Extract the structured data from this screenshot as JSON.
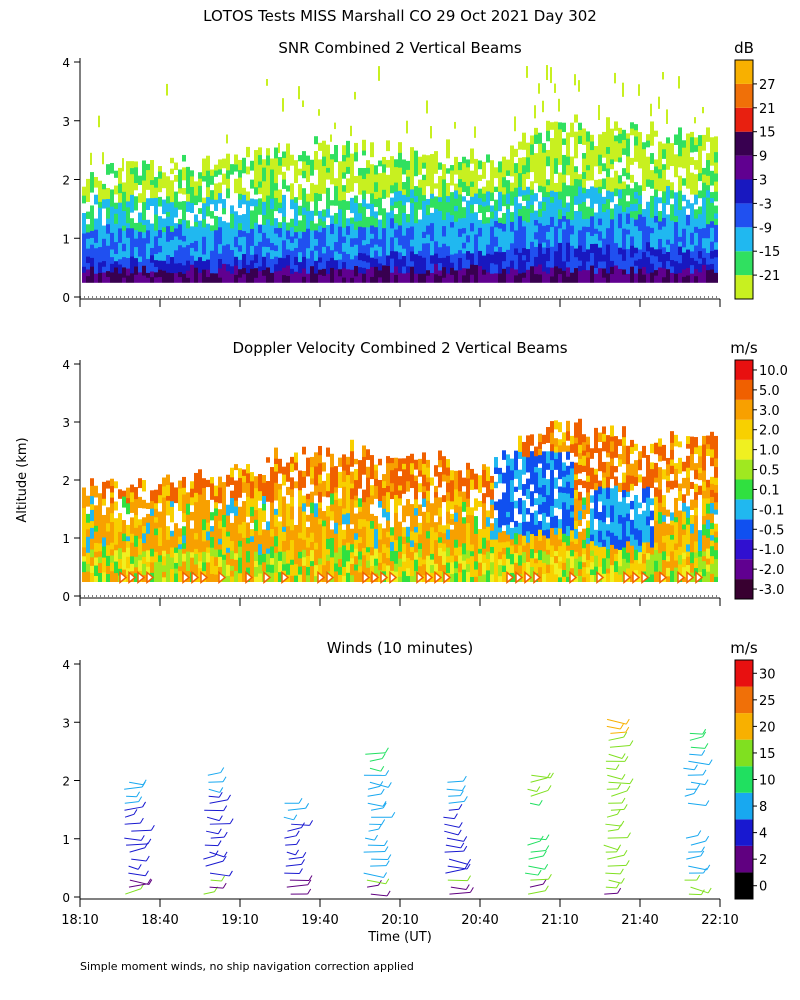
{
  "title": "LOTOS Tests MISS Marshall CO  29 Oct 2021 Day 302",
  "ylabel": "Altitude (km)",
  "xlabel": "Time (UT)",
  "footnote": "Simple moment winds, no ship navigation correction applied",
  "chart_data": [
    {
      "type": "heatmap",
      "title": "SNR Combined 2 Vertical Beams",
      "x_range": [
        "18:10",
        "22:10"
      ],
      "ylim": [
        0,
        4
      ],
      "y_ticks": [
        "0",
        "1",
        "2",
        "3",
        "4"
      ],
      "colorbar": {
        "unit": "dB",
        "labels": [
          "-21",
          "-15",
          "-9",
          "-3",
          "3",
          "9",
          "15",
          "21",
          "27"
        ],
        "colors": [
          "#c8f020",
          "#30e060",
          "#20b8f0",
          "#2050f0",
          "#1818c0",
          "#600090",
          "#380050",
          "#e82010",
          "#f07008",
          "#f8b000"
        ]
      },
      "approx_data": {
        "description": "Signal top height (km) vs time",
        "time": [
          "18:10",
          "18:40",
          "19:10",
          "19:40",
          "20:10",
          "20:40",
          "21:10",
          "21:40",
          "22:05"
        ],
        "top_height_km": [
          2.0,
          2.2,
          2.3,
          2.5,
          2.4,
          2.3,
          2.9,
          2.8,
          2.7
        ],
        "strong_layer_top_km": [
          0.6,
          0.6,
          0.6,
          0.6,
          0.7,
          0.7,
          0.8,
          0.8,
          0.7
        ]
      }
    },
    {
      "type": "heatmap",
      "title": "Doppler Velocity Combined 2 Vertical Beams",
      "x_range": [
        "18:10",
        "22:10"
      ],
      "ylim": [
        0,
        4
      ],
      "y_ticks": [
        "0",
        "1",
        "2",
        "3",
        "4"
      ],
      "colorbar": {
        "unit": "m/s",
        "labels": [
          "10.0",
          "5.0",
          "3.0",
          "2.0",
          "1.0",
          "0.5",
          "0.1",
          "-0.1",
          "-0.5",
          "-1.0",
          "-2.0",
          "-3.0"
        ],
        "colors": [
          "#380030",
          "#600090",
          "#3010d0",
          "#1050f0",
          "#20b8f0",
          "#30e040",
          "#a0e820",
          "#f0f020",
          "#f8d000",
          "#f8a000",
          "#f06000",
          "#e81010"
        ]
      },
      "approx_data": {
        "description": "Echo top height (km) vs time",
        "time": [
          "18:10",
          "18:40",
          "19:10",
          "19:40",
          "20:10",
          "20:40",
          "21:10",
          "21:40",
          "22:05"
        ],
        "top_height_km": [
          1.8,
          1.9,
          2.1,
          2.5,
          2.3,
          2.2,
          2.9,
          2.6,
          2.7
        ]
      }
    },
    {
      "type": "barbs",
      "title": "Winds (10 minutes)",
      "x_range": [
        "18:10",
        "22:10"
      ],
      "x_ticks": [
        "18:10",
        "18:40",
        "19:10",
        "19:40",
        "20:10",
        "20:40",
        "21:10",
        "21:40",
        "22:10"
      ],
      "ylim": [
        0,
        4
      ],
      "y_ticks": [
        "0",
        "1",
        "2",
        "3",
        "4"
      ],
      "colorbar": {
        "unit": "m/s",
        "labels": [
          "0",
          "2",
          "4",
          "8",
          "10",
          "15",
          "20",
          "25",
          "30"
        ],
        "colors": [
          "#000000",
          "#600080",
          "#1818d0",
          "#18a8f0",
          "#20e060",
          "#80e020",
          "#f8b000",
          "#f07008",
          "#e81010"
        ]
      },
      "profiles": [
        {
          "time": "18:30",
          "tops_km": 2.0,
          "speed_class": "8"
        },
        {
          "time": "19:00",
          "tops_km": 2.2,
          "speed_class": "8"
        },
        {
          "time": "19:30",
          "tops_km": 1.7,
          "speed_class": "8"
        },
        {
          "time": "20:00",
          "tops_km": 2.5,
          "speed_class": "10"
        },
        {
          "time": "20:30",
          "tops_km": 2.0,
          "speed_class": "8"
        },
        {
          "time": "21:00",
          "tops_km": 2.1,
          "speed_class": "15"
        },
        {
          "time": "21:30",
          "tops_km": 3.1,
          "speed_class": "20"
        },
        {
          "time": "22:00",
          "tops_km": 2.9,
          "speed_class": "10"
        }
      ]
    }
  ]
}
